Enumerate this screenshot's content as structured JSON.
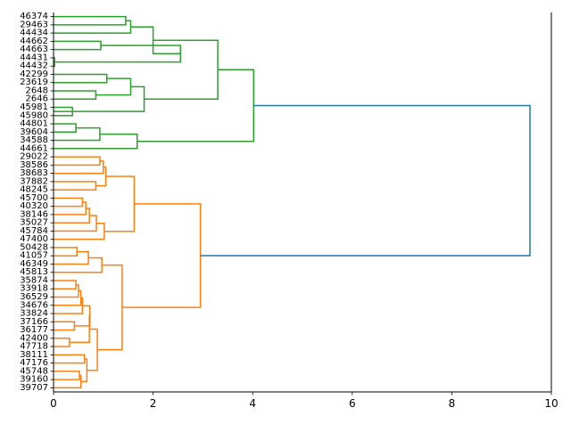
{
  "chart_data": {
    "type": "dendrogram",
    "orientation": "horizontal",
    "xlim": [
      0,
      10
    ],
    "xticks": [
      0,
      2,
      4,
      6,
      8,
      10
    ],
    "grid": false,
    "colors": {
      "cluster_green": "#2ca02c",
      "cluster_orange": "#ff7f0e",
      "root_link": "#1f77b4"
    },
    "leaves": [
      "46374",
      "29463",
      "44434",
      "44662",
      "44663",
      "44431",
      "44432",
      "42299",
      "23619",
      "2648",
      "2646",
      "45981",
      "45980",
      "44801",
      "39604",
      "34588",
      "44661",
      "29022",
      "38586",
      "38683",
      "37882",
      "48245",
      "45700",
      "40320",
      "38146",
      "35027",
      "45784",
      "47400",
      "50428",
      "41057",
      "46349",
      "45813",
      "35874",
      "33918",
      "36529",
      "34676",
      "33824",
      "37166",
      "36177",
      "42400",
      "47718",
      "38111",
      "47176",
      "45748",
      "39160",
      "39707"
    ],
    "links": [
      {
        "color": "cluster_green",
        "x": [
          0,
          1.45,
          1.45,
          0
        ],
        "y": [
          0,
          0,
          1,
          1
        ]
      },
      {
        "color": "cluster_green",
        "x": [
          1.45,
          1.55,
          1.55,
          0
        ],
        "y": [
          0.5,
          0.5,
          2,
          2
        ]
      },
      {
        "color": "cluster_green",
        "x": [
          0,
          0.95,
          0.95,
          0
        ],
        "y": [
          3,
          3,
          4,
          4
        ]
      },
      {
        "color": "cluster_green",
        "x": [
          0,
          0.02,
          0.02,
          0
        ],
        "y": [
          5,
          5,
          6,
          6
        ]
      },
      {
        "color": "cluster_green",
        "x": [
          0.95,
          2.55,
          2.55,
          0.02
        ],
        "y": [
          3.5,
          3.5,
          5.5,
          5.5
        ]
      },
      {
        "color": "cluster_green",
        "x": [
          1.55,
          2.0,
          2.0,
          2.55
        ],
        "y": [
          1.25,
          1.25,
          4.5,
          4.5
        ]
      },
      {
        "color": "cluster_green",
        "x": [
          0,
          1.07,
          1.07,
          0
        ],
        "y": [
          7,
          7,
          8,
          8
        ]
      },
      {
        "color": "cluster_green",
        "x": [
          0,
          0.85,
          0.85,
          0
        ],
        "y": [
          9,
          9,
          10,
          10
        ]
      },
      {
        "color": "cluster_green",
        "x": [
          1.07,
          1.55,
          1.55,
          0.85
        ],
        "y": [
          7.5,
          7.5,
          9.5,
          9.5
        ]
      },
      {
        "color": "cluster_green",
        "x": [
          1.55,
          1.82,
          1.82,
          0
        ],
        "y": [
          8.5,
          8.5,
          11.5,
          11.5
        ]
      },
      {
        "color": "cluster_green",
        "x": [
          0,
          0.38,
          0.38,
          0
        ],
        "y": [
          11,
          11,
          12,
          12
        ]
      },
      {
        "color": "cluster_green",
        "x": [
          0,
          0.45,
          0.45,
          0
        ],
        "y": [
          13,
          13,
          14,
          14
        ]
      },
      {
        "color": "cluster_green",
        "x": [
          0.45,
          0.93,
          0.93,
          0
        ],
        "y": [
          13.5,
          13.5,
          15,
          15
        ]
      },
      {
        "color": "cluster_green",
        "x": [
          0.93,
          1.68,
          1.68,
          0
        ],
        "y": [
          14.25,
          14.25,
          16,
          16
        ]
      },
      {
        "color": "cluster_green",
        "x": [
          2.0,
          3.3,
          3.3,
          1.82
        ],
        "y": [
          2.875,
          2.875,
          10,
          10
        ]
      },
      {
        "color": "cluster_green",
        "x": [
          3.3,
          4.02,
          4.02,
          1.68
        ],
        "y": [
          6.4375,
          6.4375,
          15.125,
          15.125
        ]
      },
      {
        "color": "cluster_orange",
        "x": [
          0,
          0.93,
          0.93,
          0
        ],
        "y": [
          17,
          17,
          18,
          18
        ]
      },
      {
        "color": "cluster_orange",
        "x": [
          0.93,
          1.0,
          1.0,
          0
        ],
        "y": [
          17.5,
          17.5,
          19,
          19
        ]
      },
      {
        "color": "cluster_orange",
        "x": [
          0,
          0.85,
          0.85,
          0
        ],
        "y": [
          20,
          20,
          21,
          21
        ]
      },
      {
        "color": "cluster_orange",
        "x": [
          1.0,
          1.05,
          1.05,
          0.85
        ],
        "y": [
          18.25,
          18.25,
          20.5,
          20.5
        ]
      },
      {
        "color": "cluster_orange",
        "x": [
          0,
          0.58,
          0.58,
          0
        ],
        "y": [
          22,
          22,
          23,
          23
        ]
      },
      {
        "color": "cluster_orange",
        "x": [
          0.58,
          0.65,
          0.65,
          0
        ],
        "y": [
          22.5,
          22.5,
          24,
          24
        ]
      },
      {
        "color": "cluster_orange",
        "x": [
          0.65,
          0.72,
          0.72,
          0
        ],
        "y": [
          23.25,
          23.25,
          25,
          25
        ]
      },
      {
        "color": "cluster_orange",
        "x": [
          0,
          0.86,
          0.86,
          0.72
        ],
        "y": [
          26,
          26,
          24.125,
          24.125
        ]
      },
      {
        "color": "cluster_orange",
        "x": [
          0.86,
          1.02,
          1.02,
          0
        ],
        "y": [
          25.0625,
          25.0625,
          27,
          27
        ]
      },
      {
        "color": "cluster_orange",
        "x": [
          1.05,
          1.62,
          1.62,
          1.02
        ],
        "y": [
          19.375,
          19.375,
          26.03,
          26.03
        ]
      },
      {
        "color": "cluster_orange",
        "x": [
          0,
          0.47,
          0.47,
          0
        ],
        "y": [
          28,
          28,
          29,
          29
        ]
      },
      {
        "color": "cluster_orange",
        "x": [
          0.47,
          0.7,
          0.7,
          0
        ],
        "y": [
          28.5,
          28.5,
          30,
          30
        ]
      },
      {
        "color": "cluster_orange",
        "x": [
          0.7,
          0.97,
          0.97,
          0
        ],
        "y": [
          29.25,
          29.25,
          31,
          31
        ]
      },
      {
        "color": "cluster_orange",
        "x": [
          0,
          0.45,
          0.45,
          0
        ],
        "y": [
          32,
          32,
          33,
          33
        ]
      },
      {
        "color": "cluster_orange",
        "x": [
          0.45,
          0.5,
          0.5,
          0
        ],
        "y": [
          32.5,
          32.5,
          34,
          34
        ]
      },
      {
        "color": "cluster_orange",
        "x": [
          0.5,
          0.55,
          0.55,
          0
        ],
        "y": [
          33.25,
          33.25,
          35,
          35
        ]
      },
      {
        "color": "cluster_orange",
        "x": [
          0.55,
          0.58,
          0.58,
          0
        ],
        "y": [
          34.125,
          34.125,
          36,
          36
        ]
      },
      {
        "color": "cluster_orange",
        "x": [
          0,
          0.42,
          0.42,
          0
        ],
        "y": [
          37,
          37,
          38,
          38
        ]
      },
      {
        "color": "cluster_orange",
        "x": [
          0.58,
          0.73,
          0.73,
          0.42
        ],
        "y": [
          35.06,
          35.06,
          37.5,
          37.5
        ]
      },
      {
        "color": "cluster_orange",
        "x": [
          0,
          0.32,
          0.32,
          0
        ],
        "y": [
          39,
          39,
          40,
          40
        ]
      },
      {
        "color": "cluster_orange",
        "x": [
          0.73,
          0.72,
          0.72,
          0.32
        ],
        "y": [
          36.28,
          36.28,
          39.5,
          39.5
        ]
      },
      {
        "color": "cluster_orange",
        "x": [
          0,
          0.62,
          0.62,
          0
        ],
        "y": [
          41,
          41,
          42,
          42
        ]
      },
      {
        "color": "cluster_orange",
        "x": [
          0,
          0.52,
          0.52,
          0
        ],
        "y": [
          43,
          43,
          44,
          44
        ]
      },
      {
        "color": "cluster_orange",
        "x": [
          0.52,
          0.55,
          0.55,
          0
        ],
        "y": [
          43.5,
          43.5,
          45,
          45
        ]
      },
      {
        "color": "cluster_orange",
        "x": [
          0.62,
          0.67,
          0.67,
          0.55
        ],
        "y": [
          41.5,
          41.5,
          44.25,
          44.25
        ]
      },
      {
        "color": "cluster_orange",
        "x": [
          0.72,
          0.88,
          0.88,
          0.67
        ],
        "y": [
          37.89,
          37.89,
          42.875,
          42.875
        ]
      },
      {
        "color": "cluster_orange",
        "x": [
          0.97,
          1.38,
          1.38,
          0.88
        ],
        "y": [
          30.125,
          30.125,
          40.38,
          40.38
        ]
      },
      {
        "color": "cluster_orange",
        "x": [
          1.62,
          2.95,
          2.95,
          1.38
        ],
        "y": [
          22.7,
          22.7,
          35.25,
          35.25
        ]
      },
      {
        "color": "root_link",
        "x": [
          4.02,
          9.57,
          9.57,
          2.95
        ],
        "y": [
          10.78,
          10.78,
          28.98,
          28.98
        ]
      }
    ]
  }
}
